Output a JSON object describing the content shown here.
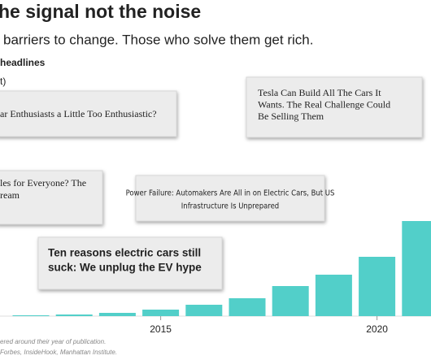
{
  "chart_data": {
    "type": "bar",
    "title": "he signal not the noise",
    "subtitle": "barriers to change. Those who solve them get rich.",
    "legend_title": "headlines",
    "legend_note": "t)",
    "categories": [
      null,
      null,
      null,
      "2015",
      null,
      null,
      null,
      null,
      "2020",
      null
    ],
    "values": [
      1,
      2,
      4,
      8,
      14,
      22,
      37,
      51,
      73,
      117
    ],
    "color": "#52cfc9",
    "ylim": [
      0,
      130
    ],
    "headlines": [
      {
        "lines": [
          "ar Enthusiasts a Little Too Enthusiastic?"
        ]
      },
      {
        "lines": [
          "Tesla Can Build All The Cars It",
          "Wants. The Real Challenge Could",
          "Be Selling Them"
        ]
      },
      {
        "lines": [
          "les for Everyone? The",
          "ream"
        ]
      },
      {
        "lines": [
          "Power Failure: Automakers Are All in on Electric Cars, But US",
          "Infrastructure Is Unprepared"
        ]
      },
      {
        "lines": [
          "Ten reasons electric cars still",
          "suck: We unplug the EV hype"
        ]
      }
    ],
    "notes": [
      "ered around their year of publication.",
      "Forbes, InsideHook, Manhattan Institute."
    ]
  }
}
